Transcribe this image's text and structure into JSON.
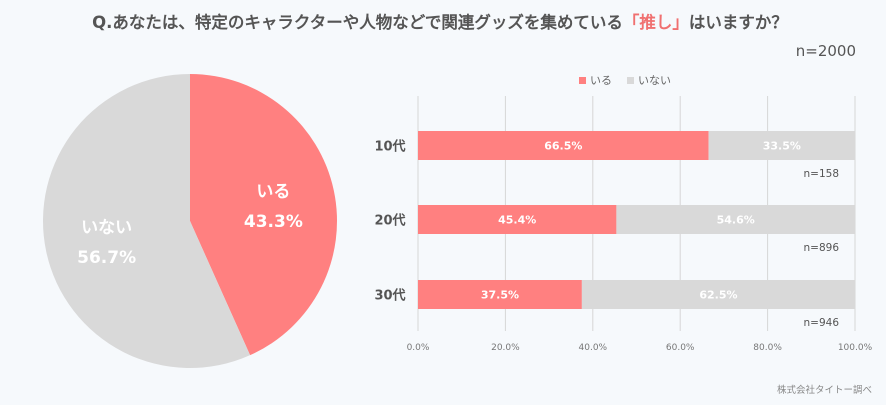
{
  "title": {
    "prefix": "Q.あなたは、特定のキャラクターや人物などで関連グッズを集めている",
    "highlight": "「推し」",
    "suffix": "はいますか？"
  },
  "sample_total": "n=2000",
  "source": "株式会社タイトー調べ",
  "colors": {
    "yes": "#ff8080",
    "no": "#d9d9d9",
    "highlight": "#f07070"
  },
  "chart_data": [
    {
      "type": "pie",
      "slices": [
        {
          "label": "いる",
          "value": 43.3,
          "display": "43.3%",
          "color": "#ff8080"
        },
        {
          "label": "いない",
          "value": 56.7,
          "display": "56.7%",
          "color": "#d9d9d9"
        }
      ]
    },
    {
      "type": "bar",
      "orientation": "horizontal",
      "stacked": true,
      "legend": [
        "いる",
        "いない"
      ],
      "legend_position": "top-right",
      "categories": [
        "10代",
        "20代",
        "30代"
      ],
      "series": [
        {
          "name": "いる",
          "values": [
            66.5,
            45.4,
            37.5
          ],
          "labels": [
            "66.5%",
            "45.4%",
            "37.5%"
          ],
          "color": "#ff8080"
        },
        {
          "name": "いない",
          "values": [
            33.5,
            54.6,
            62.5
          ],
          "labels": [
            "33.5%",
            "54.6%",
            "62.5%"
          ],
          "color": "#d9d9d9"
        }
      ],
      "sample_sizes": [
        "n=158",
        "n=896",
        "n=946"
      ],
      "xlim": [
        0,
        100
      ],
      "xticks": [
        "0.0%",
        "20.0%",
        "40.0%",
        "60.0%",
        "80.0%",
        "100.0%"
      ],
      "grid": true
    }
  ]
}
